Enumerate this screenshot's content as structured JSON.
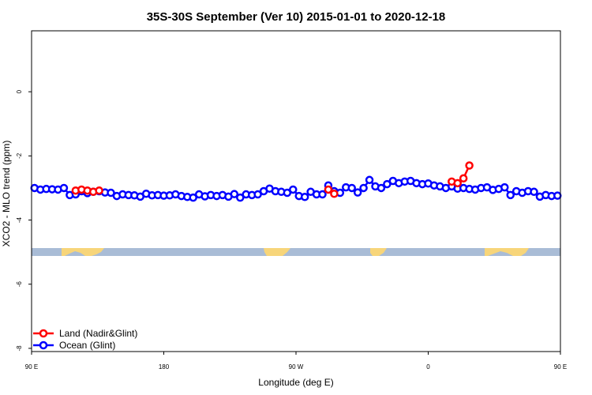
{
  "chart_data": {
    "type": "line",
    "title": "35S-30S September (Ver 10)   2015-01-01 to 2020-12-18",
    "xlabel": "Longitude (deg E)",
    "ylabel": "XCO2 - MLO trend (ppm)",
    "xlim": [
      90,
      450
    ],
    "ylim": [
      -8.1,
      1.9
    ],
    "x_ticks": [
      {
        "value": 90,
        "label": "90 E"
      },
      {
        "value": 180,
        "label": "180"
      },
      {
        "value": 270,
        "label": "90 W"
      },
      {
        "value": 360,
        "label": "0"
      },
      {
        "value": 450,
        "label": "90 E"
      },
      {
        "value": 540,
        "label": "180"
      }
    ],
    "y_ticks": [
      {
        "value": 0,
        "label": "0"
      },
      {
        "value": -2,
        "label": "-2"
      },
      {
        "value": -4,
        "label": "-4"
      },
      {
        "value": -6,
        "label": "-6"
      },
      {
        "value": -8,
        "label": "-8"
      }
    ],
    "legend_position": "bottom-left",
    "series": [
      {
        "name": "Land (Nadir&Glint)",
        "color": "#ff0000",
        "segments": [
          [
            [
              120,
              -3.08
            ],
            [
              124,
              -3.05
            ],
            [
              128,
              -3.08
            ],
            [
              132,
              -3.12
            ],
            [
              136,
              -3.08
            ]
          ],
          [
            [
              292,
              -3.05
            ],
            [
              296,
              -3.18
            ]
          ],
          [
            [
              376,
              -2.8
            ],
            [
              380,
              -2.85
            ],
            [
              384,
              -2.7
            ],
            [
              388,
              -2.3
            ]
          ],
          [
            [
              482,
              -3.05
            ],
            [
              486,
              -3.08
            ],
            [
              490,
              -3.05
            ],
            [
              494,
              -3.1
            ],
            [
              498,
              -3.08
            ]
          ]
        ]
      },
      {
        "name": "Ocean (Glint)",
        "color": "#0000ff",
        "points": [
          [
            92,
            -3.0
          ],
          [
            96,
            -3.05
          ],
          [
            100,
            -3.03
          ],
          [
            104,
            -3.04
          ],
          [
            108,
            -3.05
          ],
          [
            112,
            -3.0
          ],
          [
            116,
            -3.22
          ],
          [
            120,
            -3.2
          ],
          [
            124,
            -3.1
          ],
          [
            128,
            -3.16
          ],
          [
            132,
            -3.12
          ],
          [
            136,
            -3.1
          ],
          [
            140,
            -3.14
          ],
          [
            144,
            -3.15
          ],
          [
            148,
            -3.25
          ],
          [
            152,
            -3.2
          ],
          [
            156,
            -3.22
          ],
          [
            160,
            -3.23
          ],
          [
            164,
            -3.27
          ],
          [
            168,
            -3.18
          ],
          [
            172,
            -3.23
          ],
          [
            176,
            -3.22
          ],
          [
            180,
            -3.24
          ],
          [
            184,
            -3.23
          ],
          [
            188,
            -3.2
          ],
          [
            192,
            -3.25
          ],
          [
            196,
            -3.28
          ],
          [
            200,
            -3.3
          ],
          [
            204,
            -3.2
          ],
          [
            208,
            -3.26
          ],
          [
            212,
            -3.22
          ],
          [
            216,
            -3.25
          ],
          [
            220,
            -3.22
          ],
          [
            224,
            -3.27
          ],
          [
            228,
            -3.19
          ],
          [
            232,
            -3.3
          ],
          [
            236,
            -3.2
          ],
          [
            240,
            -3.22
          ],
          [
            244,
            -3.2
          ],
          [
            248,
            -3.1
          ],
          [
            252,
            -3.02
          ],
          [
            256,
            -3.1
          ],
          [
            260,
            -3.12
          ],
          [
            264,
            -3.15
          ],
          [
            268,
            -3.05
          ],
          [
            272,
            -3.25
          ],
          [
            276,
            -3.28
          ],
          [
            280,
            -3.12
          ],
          [
            284,
            -3.2
          ],
          [
            288,
            -3.2
          ],
          [
            292,
            -2.92
          ],
          [
            296,
            -3.1
          ],
          [
            300,
            -3.15
          ],
          [
            304,
            -2.98
          ],
          [
            308,
            -3.0
          ],
          [
            312,
            -3.14
          ],
          [
            316,
            -3.0
          ],
          [
            320,
            -2.75
          ],
          [
            324,
            -2.95
          ],
          [
            328,
            -3.0
          ],
          [
            332,
            -2.88
          ],
          [
            336,
            -2.78
          ],
          [
            340,
            -2.85
          ],
          [
            344,
            -2.8
          ],
          [
            348,
            -2.78
          ],
          [
            352,
            -2.85
          ],
          [
            356,
            -2.88
          ],
          [
            360,
            -2.86
          ],
          [
            364,
            -2.92
          ],
          [
            368,
            -2.95
          ],
          [
            372,
            -3.0
          ],
          [
            376,
            -2.95
          ],
          [
            380,
            -3.02
          ],
          [
            384,
            -3.0
          ],
          [
            388,
            -3.03
          ],
          [
            392,
            -3.05
          ],
          [
            396,
            -3.0
          ],
          [
            400,
            -2.98
          ],
          [
            404,
            -3.06
          ],
          [
            408,
            -3.03
          ],
          [
            412,
            -2.98
          ],
          [
            416,
            -3.22
          ],
          [
            420,
            -3.1
          ],
          [
            424,
            -3.15
          ],
          [
            428,
            -3.1
          ],
          [
            432,
            -3.12
          ],
          [
            436,
            -3.27
          ],
          [
            440,
            -3.22
          ],
          [
            444,
            -3.25
          ],
          [
            448,
            -3.24
          ]
        ]
      }
    ]
  }
}
